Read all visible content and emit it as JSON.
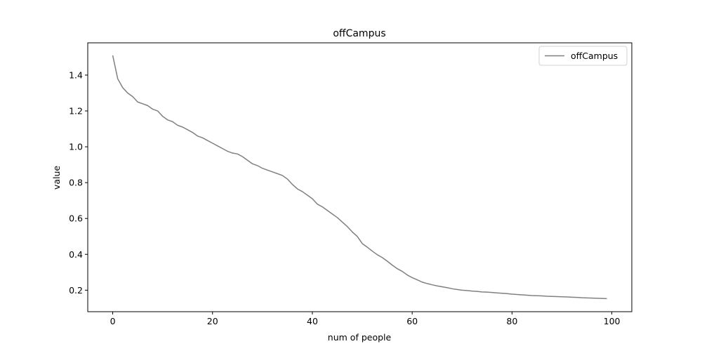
{
  "chart_data": {
    "type": "line",
    "title": "offCampus",
    "xlabel": "num of people",
    "ylabel": "value",
    "xlim": [
      -5,
      104
    ],
    "ylim": [
      0.08,
      1.58
    ],
    "x_ticks": [
      0,
      20,
      40,
      60,
      80,
      100
    ],
    "y_ticks": [
      0.2,
      0.4,
      0.6,
      0.8,
      1.0,
      1.2,
      1.4
    ],
    "x_tick_labels": [
      "0",
      "20",
      "40",
      "60",
      "80",
      "100"
    ],
    "y_tick_labels": [
      "0.2",
      "0.4",
      "0.6",
      "0.8",
      "1.0",
      "1.2",
      "1.4"
    ],
    "legend_position": "top-right",
    "grid": false,
    "series": [
      {
        "name": "offCampus",
        "color": "#808080",
        "x": [
          0,
          1,
          2,
          3,
          4,
          5,
          6,
          7,
          8,
          9,
          10,
          11,
          12,
          13,
          14,
          15,
          16,
          17,
          18,
          19,
          20,
          21,
          22,
          23,
          24,
          25,
          26,
          27,
          28,
          29,
          30,
          31,
          32,
          33,
          34,
          35,
          36,
          37,
          38,
          39,
          40,
          41,
          42,
          43,
          44,
          45,
          46,
          47,
          48,
          49,
          50,
          51,
          52,
          53,
          54,
          55,
          56,
          57,
          58,
          59,
          60,
          61,
          62,
          63,
          64,
          65,
          66,
          67,
          68,
          69,
          70,
          71,
          72,
          73,
          74,
          75,
          76,
          77,
          78,
          79,
          80,
          81,
          82,
          83,
          84,
          85,
          86,
          87,
          88,
          89,
          90,
          91,
          92,
          93,
          94,
          95,
          96,
          97,
          98,
          99
        ],
        "y": [
          1.51,
          1.38,
          1.33,
          1.3,
          1.28,
          1.25,
          1.24,
          1.23,
          1.21,
          1.2,
          1.17,
          1.15,
          1.14,
          1.12,
          1.11,
          1.095,
          1.08,
          1.06,
          1.05,
          1.035,
          1.02,
          1.005,
          0.99,
          0.975,
          0.965,
          0.96,
          0.945,
          0.925,
          0.905,
          0.895,
          0.88,
          0.87,
          0.86,
          0.85,
          0.84,
          0.82,
          0.79,
          0.765,
          0.75,
          0.73,
          0.71,
          0.68,
          0.665,
          0.645,
          0.625,
          0.605,
          0.58,
          0.555,
          0.525,
          0.5,
          0.46,
          0.44,
          0.418,
          0.398,
          0.382,
          0.362,
          0.34,
          0.32,
          0.305,
          0.285,
          0.27,
          0.258,
          0.245,
          0.237,
          0.23,
          0.224,
          0.219,
          0.214,
          0.208,
          0.204,
          0.2,
          0.198,
          0.195,
          0.193,
          0.19,
          0.189,
          0.187,
          0.185,
          0.183,
          0.181,
          0.178,
          0.176,
          0.174,
          0.172,
          0.17,
          0.169,
          0.168,
          0.166,
          0.165,
          0.164,
          0.163,
          0.162,
          0.161,
          0.16,
          0.158,
          0.157,
          0.156,
          0.155,
          0.154,
          0.153
        ]
      }
    ]
  }
}
